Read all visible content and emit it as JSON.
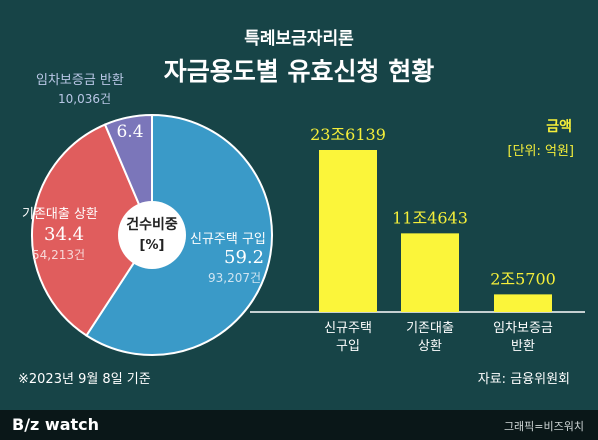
{
  "header": {
    "supertitle": "특례보금자리론",
    "title": "자금용도별 유효신청 현황"
  },
  "colors": {
    "background": "#174447",
    "pie_home": "#3a9ac8",
    "pie_refinance": "#e05d5d",
    "pie_deposit": "#7b76ba",
    "bar": "#fbf53a",
    "accent_text": "#f5ef3a",
    "muted_text": "#b9c7e6"
  },
  "chart_data": [
    {
      "type": "pie",
      "center_label": [
        "건수비중",
        "[%]"
      ],
      "slices": [
        {
          "label": "신규주택 구입",
          "value": 59.2,
          "value_text": "59.2",
          "count": "93,207건"
        },
        {
          "label": "기존대출 상환",
          "value": 34.4,
          "value_text": "34.4",
          "count": "54,213건"
        },
        {
          "label": "임차보증금 반환",
          "value": 6.4,
          "value_text": "6.4",
          "count": "10,036건"
        }
      ]
    },
    {
      "type": "bar",
      "legend_title": "금액",
      "unit": "[단위: 억원]",
      "categories": [
        [
          "신규주택",
          "구입"
        ],
        [
          "기존대출",
          "상환"
        ],
        [
          "임차보증금",
          "반환"
        ]
      ],
      "values": [
        236139,
        114643,
        25700
      ],
      "value_labels": [
        "23조6139",
        "11조4643",
        "2조5700"
      ]
    }
  ],
  "footer": {
    "note": "※2023년 9월 8일 기준",
    "source": "자료: 금융위원회",
    "brand_b": "B",
    "brand_z": "/z",
    "brand_watch": " watch",
    "credit": "그래픽=비즈워치"
  }
}
